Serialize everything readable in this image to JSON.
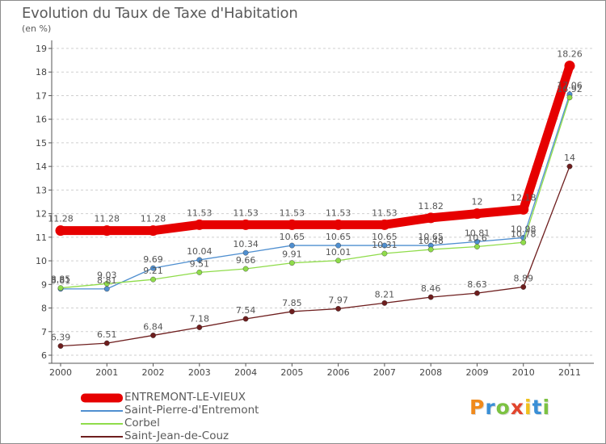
{
  "header": {
    "title": "Evolution du Taux de Taxe d'Habitation",
    "unit": "(en %)"
  },
  "logo": {
    "text": "Proxiti",
    "colors": [
      "#f08a1c",
      "#3a8fd6",
      "#7cc242",
      "#e2452d",
      "#f0c11c",
      "#3a8fd6",
      "#7cc242"
    ]
  },
  "chart_data": {
    "type": "line",
    "title": "Evolution du Taux de Taxe d'Habitation",
    "ylabel": "(en %)",
    "xlabel": "",
    "x": [
      "2000",
      "2001",
      "2002",
      "2003",
      "2004",
      "2005",
      "2006",
      "2007",
      "2008",
      "2009",
      "2010",
      "2011"
    ],
    "ylim": [
      6,
      19
    ],
    "yticks": [
      6,
      7,
      8,
      9,
      10,
      11,
      12,
      13,
      14,
      15,
      16,
      17,
      18,
      19
    ],
    "grid": "horizontal dashed",
    "legend_position": "bottom-left",
    "series": [
      {
        "name": "ENTREMONT-LE-VIEUX",
        "color": "#e60000",
        "values": [
          11.28,
          11.28,
          11.28,
          11.53,
          11.53,
          11.53,
          11.53,
          11.53,
          11.82,
          12,
          12.18,
          18.26
        ],
        "labels": [
          "11.28",
          "11.28",
          "11.28",
          "11.53",
          "11.53",
          "11.53",
          "11.53",
          "11.53",
          "11.82",
          "12",
          "12.18",
          "18.26"
        ]
      },
      {
        "name": "Saint-Pierre-d'Entremont",
        "color": "#4f8fd0",
        "values": [
          8.81,
          8.81,
          9.69,
          10.04,
          10.34,
          10.65,
          10.65,
          10.65,
          10.65,
          10.81,
          10.98,
          17.06
        ],
        "labels": [
          "8.81",
          "8.81",
          "9.69",
          "10.04",
          "10.34",
          "10.65",
          "10.65",
          "10.65",
          "10.65",
          "10.81",
          "10.98",
          "17.06"
        ]
      },
      {
        "name": "Corbel",
        "color": "#8fdc4a",
        "values": [
          8.85,
          9.03,
          9.21,
          9.51,
          9.66,
          9.91,
          10.01,
          10.31,
          10.48,
          10.6,
          10.78,
          16.92
        ],
        "labels": [
          "8.85",
          "9.03",
          "9.21",
          "9.51",
          "9.66",
          "9.91",
          "10.01",
          "10.31",
          "10.48",
          "10.6",
          "10.78",
          "16.92"
        ]
      },
      {
        "name": "Saint-Jean-de-Couz",
        "color": "#6e1e1e",
        "values": [
          6.39,
          6.51,
          6.84,
          7.18,
          7.54,
          7.85,
          7.97,
          8.21,
          8.46,
          8.63,
          8.89,
          14
        ],
        "labels": [
          "6.39",
          "6.51",
          "6.84",
          "7.18",
          "7.54",
          "7.85",
          "7.97",
          "8.21",
          "8.46",
          "8.63",
          "8.89",
          "14"
        ]
      }
    ]
  }
}
